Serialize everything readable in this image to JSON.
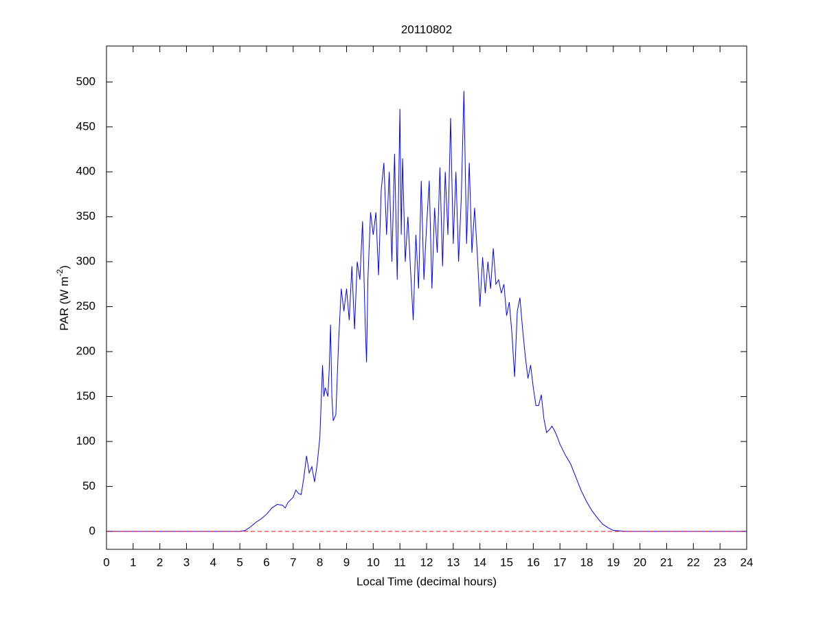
{
  "chart_data": {
    "type": "line",
    "title": "20110802",
    "xlabel": "Local Time (decimal hours)",
    "ylabel": {
      "text": "PAR (W m",
      "superscript": "-2",
      "suffix": ")"
    },
    "x": [
      0,
      5.0,
      5.2,
      5.4,
      5.6,
      5.8,
      6.0,
      6.2,
      6.4,
      6.6,
      6.7,
      6.8,
      7.0,
      7.1,
      7.2,
      7.3,
      7.4,
      7.5,
      7.6,
      7.7,
      7.8,
      7.9,
      8.0,
      8.1,
      8.15,
      8.2,
      8.3,
      8.35,
      8.4,
      8.45,
      8.5,
      8.6,
      8.7,
      8.8,
      8.9,
      9.0,
      9.1,
      9.2,
      9.3,
      9.4,
      9.5,
      9.6,
      9.7,
      9.75,
      9.8,
      9.9,
      10.0,
      10.1,
      10.2,
      10.3,
      10.4,
      10.5,
      10.6,
      10.7,
      10.8,
      10.9,
      11.0,
      11.05,
      11.1,
      11.2,
      11.3,
      11.4,
      11.5,
      11.6,
      11.7,
      11.8,
      11.9,
      12.0,
      12.1,
      12.2,
      12.3,
      12.4,
      12.5,
      12.6,
      12.7,
      12.8,
      12.9,
      13.0,
      13.1,
      13.2,
      13.3,
      13.4,
      13.5,
      13.6,
      13.7,
      13.8,
      13.9,
      14.0,
      14.1,
      14.2,
      14.3,
      14.4,
      14.5,
      14.6,
      14.7,
      14.8,
      14.9,
      15.0,
      15.1,
      15.2,
      15.3,
      15.4,
      15.5,
      15.6,
      15.7,
      15.8,
      15.9,
      16.0,
      16.1,
      16.2,
      16.3,
      16.4,
      16.5,
      16.6,
      16.7,
      16.8,
      16.9,
      17.0,
      17.2,
      17.4,
      17.6,
      17.8,
      18.0,
      18.2,
      18.4,
      18.6,
      18.8,
      19.0,
      19.5,
      24
    ],
    "series": [
      {
        "color": "#0000ff",
        "values": [
          0,
          0,
          1,
          5,
          10,
          14,
          19,
          26,
          30,
          29,
          26,
          32,
          38,
          46,
          42,
          41,
          60,
          84,
          65,
          72,
          55,
          75,
          105,
          185,
          150,
          160,
          150,
          180,
          230,
          150,
          123,
          130,
          210,
          270,
          245,
          270,
          235,
          295,
          225,
          300,
          280,
          345,
          230,
          188,
          280,
          355,
          330,
          355,
          285,
          380,
          410,
          330,
          400,
          300,
          420,
          280,
          470,
          330,
          415,
          300,
          350,
          290,
          235,
          330,
          270,
          390,
          280,
          340,
          390,
          270,
          360,
          310,
          405,
          295,
          400,
          330,
          460,
          320,
          400,
          300,
          370,
          490,
          320,
          410,
          310,
          360,
          310,
          250,
          305,
          265,
          300,
          270,
          315,
          275,
          280,
          265,
          275,
          240,
          255,
          220,
          172,
          245,
          260,
          225,
          195,
          170,
          185,
          160,
          140,
          140,
          152,
          125,
          110,
          113,
          117,
          112,
          105,
          97,
          85,
          75,
          60,
          45,
          33,
          23,
          15,
          8,
          4,
          1,
          0,
          0
        ]
      }
    ],
    "reference_line": {
      "value": 0,
      "color": "#ff0000",
      "dashed": true
    },
    "xlim": [
      0,
      24
    ],
    "xticks": [
      0,
      1,
      2,
      3,
      4,
      5,
      6,
      7,
      8,
      9,
      10,
      11,
      12,
      13,
      14,
      15,
      16,
      17,
      18,
      19,
      20,
      21,
      22,
      23,
      24
    ],
    "ylim": [
      -20,
      540
    ],
    "yticks": [
      0,
      50,
      100,
      150,
      200,
      250,
      300,
      350,
      400,
      450,
      500
    ],
    "grid": false
  }
}
